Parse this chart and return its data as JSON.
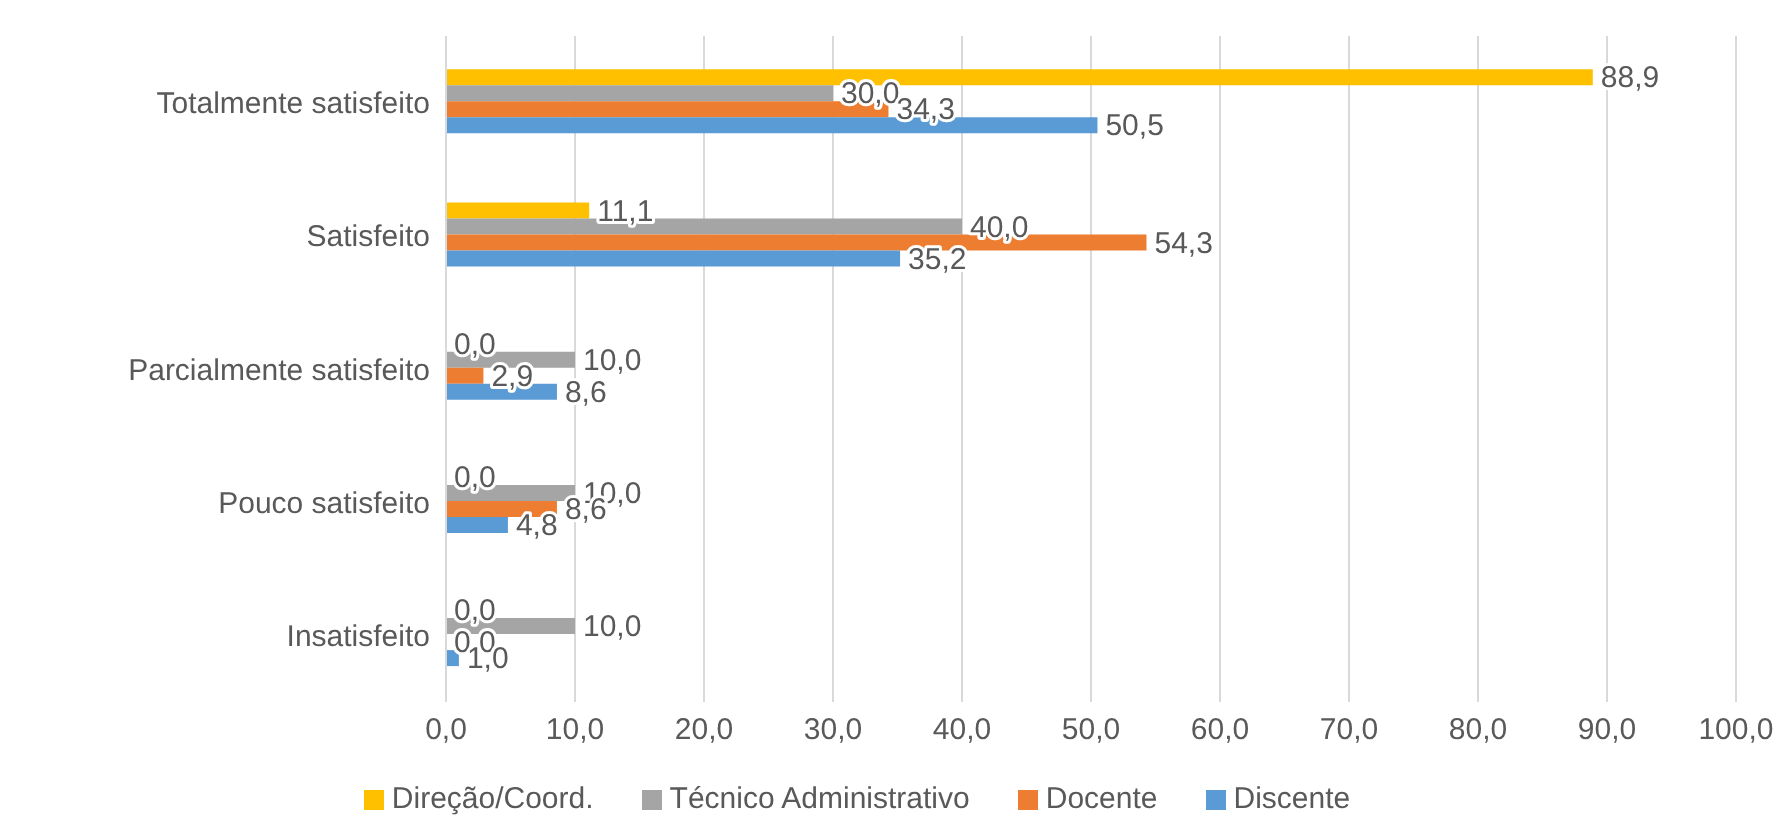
{
  "chart_data": {
    "type": "bar",
    "orientation": "horizontal",
    "categories": [
      "Totalmente satisfeito",
      "Satisfeito",
      "Parcialmente satisfeito",
      "Pouco satisfeito",
      "Insatisfeito"
    ],
    "series": [
      {
        "name": "Direção/Coord.",
        "color": "#ffc000",
        "values": [
          88.9,
          11.1,
          0.0,
          0.0,
          0.0
        ],
        "value_labels": [
          "88,9",
          "11,1",
          "0,0",
          "0,0",
          "0,0"
        ]
      },
      {
        "name": "Técnico Administrativo",
        "color": "#a5a5a5",
        "values": [
          30.0,
          40.0,
          10.0,
          10.0,
          10.0
        ],
        "value_labels": [
          "30,0",
          "40,0",
          "10,0",
          "10,0",
          "10,0"
        ]
      },
      {
        "name": "Docente",
        "color": "#ed7d31",
        "values": [
          34.3,
          54.3,
          2.9,
          8.6,
          0.0
        ],
        "value_labels": [
          "34,3",
          "54,3",
          "2,9",
          "8,6",
          "0,0"
        ]
      },
      {
        "name": "Discente",
        "color": "#5b9bd5",
        "values": [
          50.5,
          35.2,
          8.6,
          4.8,
          1.0
        ],
        "value_labels": [
          "50,5",
          "35,2",
          "8,6",
          "4,8",
          "1,0"
        ]
      }
    ],
    "xlim": [
      0,
      100
    ],
    "xticks": [
      {
        "value": 0,
        "label": "0,0"
      },
      {
        "value": 10,
        "label": "10,0"
      },
      {
        "value": 20,
        "label": "20,0"
      },
      {
        "value": 30,
        "label": "30,0"
      },
      {
        "value": 40,
        "label": "40,0"
      },
      {
        "value": 50,
        "label": "50,0"
      },
      {
        "value": 60,
        "label": "60,0"
      },
      {
        "value": 70,
        "label": "70,0"
      },
      {
        "value": 80,
        "label": "80,0"
      },
      {
        "value": 90,
        "label": "90,0"
      },
      {
        "value": 100,
        "label": "100,0"
      }
    ],
    "grid": "x",
    "legend": "bottom"
  }
}
